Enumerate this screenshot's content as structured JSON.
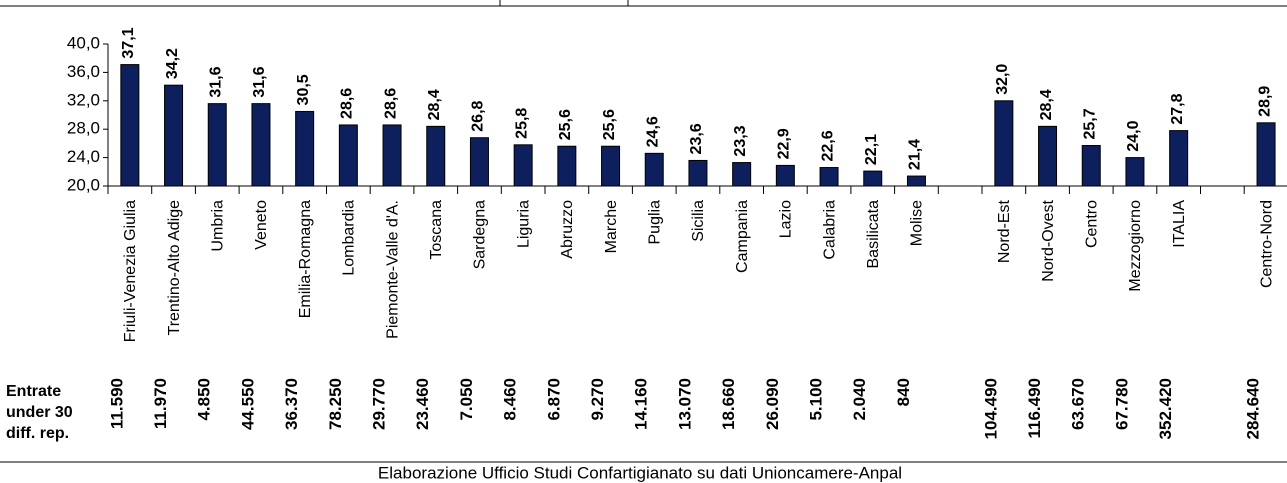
{
  "chart_data": {
    "type": "bar",
    "categories": [
      "Friuli-Venezia Giulia",
      "Trentino-Alto Adige",
      "Umbria",
      "Veneto",
      "Emilia-Romagna",
      "Lombardia",
      "Piemonte-Valle d'A.",
      "Toscana",
      "Sardegna",
      "Liguria",
      "Abruzzo",
      "Marche",
      "Puglia",
      "Sicilia",
      "Campania",
      "Lazio",
      "Calabria",
      "Basilicata",
      "Molise",
      null,
      "Nord-Est",
      "Nord-Ovest",
      "Centro",
      "Mezzogiorno",
      "ITALIA",
      null,
      "Centro-Nord"
    ],
    "values": [
      37.1,
      34.2,
      31.6,
      31.6,
      30.5,
      28.6,
      28.6,
      28.4,
      26.8,
      25.8,
      25.6,
      25.6,
      24.6,
      23.6,
      23.3,
      22.9,
      22.6,
      22.1,
      21.4,
      null,
      32.0,
      28.4,
      25.7,
      24.0,
      27.8,
      null,
      28.9
    ],
    "value_labels": [
      "37,1",
      "34,2",
      "31,6",
      "31,6",
      "30,5",
      "28,6",
      "28,6",
      "28,4",
      "26,8",
      "25,8",
      "25,6",
      "25,6",
      "24,6",
      "23,6",
      "23,3",
      "22,9",
      "22,6",
      "22,1",
      "21,4",
      null,
      "32,0",
      "28,4",
      "25,7",
      "24,0",
      "27,8",
      null,
      "28,9"
    ],
    "color": "#0d1f5c",
    "ylim": [
      20,
      40
    ],
    "yticks": [
      {
        "value": 20,
        "label": "20,0"
      },
      {
        "value": 24,
        "label": "24,0"
      },
      {
        "value": 28,
        "label": "28,0"
      },
      {
        "value": 32,
        "label": "32,0"
      },
      {
        "value": 36,
        "label": "36,0"
      },
      {
        "value": 40,
        "label": "40,0"
      }
    ],
    "entrate": {
      "label": [
        "Entrate",
        "under 30",
        "diff. rep."
      ],
      "values": [
        11590,
        11970,
        4850,
        44550,
        36370,
        78250,
        29770,
        23460,
        7050,
        8460,
        6870,
        9270,
        14160,
        13070,
        18660,
        26090,
        5100,
        2040,
        840,
        null,
        104490,
        116490,
        63670,
        67780,
        352420,
        null,
        284640
      ],
      "value_labels": [
        "11.590",
        "11.970",
        "4.850",
        "44.550",
        "36.370",
        "78.250",
        "29.770",
        "23.460",
        "7.050",
        "8.460",
        "6.870",
        "9.270",
        "14.160",
        "13.070",
        "18.660",
        "26.090",
        "5.100",
        "2.040",
        "840",
        null,
        "104.490",
        "116.490",
        "63.670",
        "67.780",
        "352.420",
        null,
        "284.640"
      ]
    },
    "source": "Elaborazione Ufficio Studi Confartigianato su dati Unioncamere-Anpal"
  }
}
